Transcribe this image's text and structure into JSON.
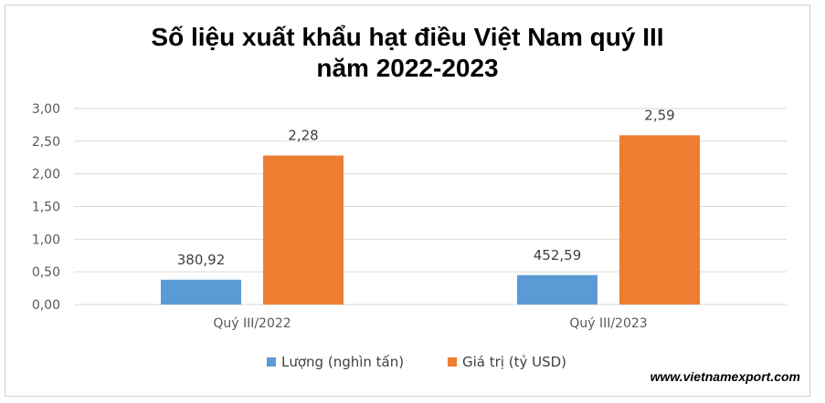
{
  "chart_data": {
    "type": "bar",
    "title_lines": [
      "Số liệu xuất khẩu hạt điều Việt Nam quý III",
      "năm 2022-2023"
    ],
    "categories": [
      "Quý III/2022",
      "Quý III/2023"
    ],
    "series": [
      {
        "name": "Lượng (nghìn tấn)",
        "color": "#5b9bd5",
        "values": [
          0.38,
          0.45
        ],
        "data_labels": [
          "380,92",
          "452,59"
        ]
      },
      {
        "name": "Giá trị (tỷ USD)",
        "color": "#ed7d31",
        "values": [
          2.28,
          2.59
        ],
        "data_labels": [
          "2,28",
          "2,59"
        ]
      }
    ],
    "ylim": [
      0,
      3
    ],
    "yticks": [
      "0,00",
      "0,50",
      "1,00",
      "1,50",
      "2,00",
      "2,50",
      "3,00"
    ],
    "grid": true,
    "legend_position": "bottom"
  },
  "watermark": "www.vietnamexport.com"
}
